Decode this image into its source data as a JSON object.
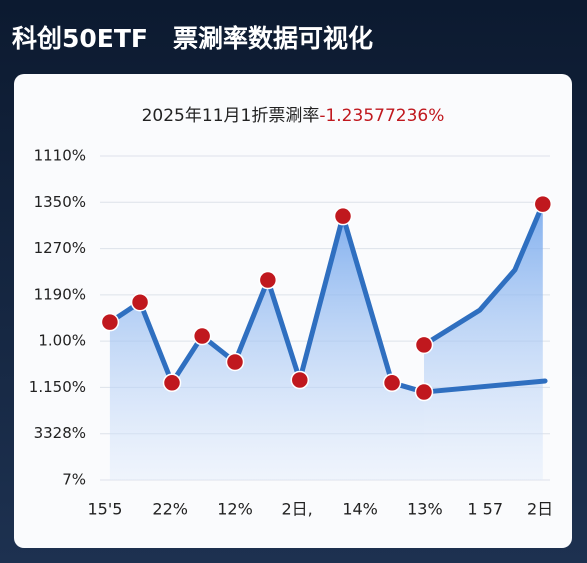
{
  "chart_data": {
    "type": "line",
    "title": "科创50ETF　票涮率数据可视化",
    "subtitle": "2025年11月1折票涮率",
    "subtitle_value": "-1.23577236%",
    "xlim": [
      0,
      100
    ],
    "xticks": [
      {
        "value": 1.1,
        "label": "15'5"
      },
      {
        "value": 15.6,
        "label": "22%"
      },
      {
        "value": 30,
        "label": "12%"
      },
      {
        "value": 43.8,
        "label": "2日,"
      },
      {
        "value": 57.8,
        "label": "14%"
      },
      {
        "value": 72.2,
        "label": "13%"
      },
      {
        "value": 85.6,
        "label": "1 57"
      },
      {
        "value": 97.8,
        "label": "2日"
      }
    ],
    "ylim": [
      0,
      7
    ],
    "yticks": [
      {
        "value": 0,
        "label": "7%"
      },
      {
        "value": 1,
        "label": "3328%"
      },
      {
        "value": 2,
        "label": "1.150%"
      },
      {
        "value": 3,
        "label": "1.00%"
      },
      {
        "value": 4,
        "label": "1190%"
      },
      {
        "value": 5,
        "label": "1270%"
      },
      {
        "value": 6,
        "label": "1350%"
      },
      {
        "value": 7,
        "label": "1110%"
      }
    ],
    "grid": true,
    "series": [
      {
        "color": "#2f6fc0",
        "marker_color": "#c0181e",
        "fill": true,
        "markers": true,
        "x": [
          2.2,
          8.9,
          16,
          22.7,
          30,
          37.3,
          44.4,
          54,
          64.9,
          72
        ],
        "values": [
          3.41,
          3.84,
          2.1,
          3.11,
          2.55,
          4.32,
          2.16,
          5.7,
          2.1,
          1.9
        ]
      },
      {
        "color": "#2f6fc0",
        "marker_color": "#c0181e",
        "fill": false,
        "markers": false,
        "x": [
          72,
          98.9
        ],
        "values": [
          1.9,
          2.14
        ]
      },
      {
        "color": "#2f6fc0",
        "marker_color": "#c0181e",
        "fill": true,
        "markers": [
          true,
          false,
          false,
          true
        ],
        "x": [
          72,
          84.4,
          92.2,
          98.4
        ],
        "values": [
          2.92,
          3.67,
          4.54,
          5.96
        ]
      }
    ]
  }
}
